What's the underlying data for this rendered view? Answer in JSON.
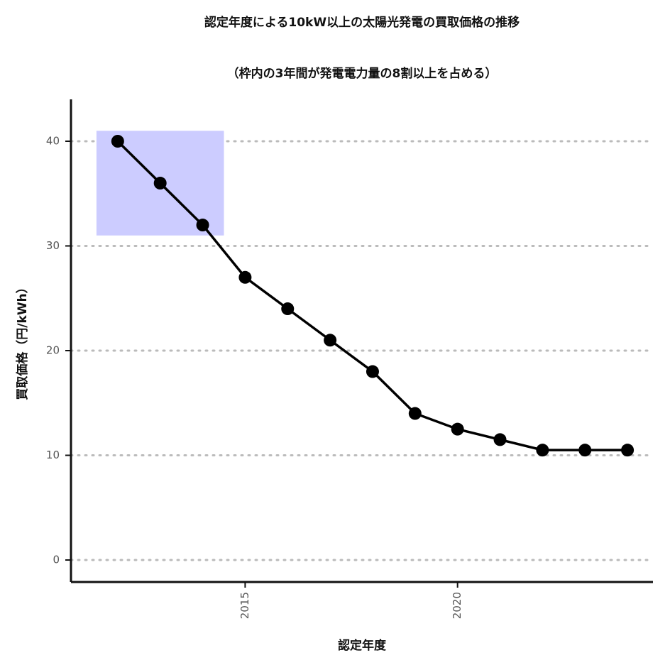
{
  "chart_data": {
    "type": "line",
    "title": "認定年度による10kW以上の太陽光発電の買取価格の推移",
    "subtitle": "（枠内の3年間が発電電力量の8割以上を占める）",
    "x_label": "認定年度",
    "y_label": "買取価格（円/kWh）",
    "x": [
      2012,
      2013,
      2014,
      2015,
      2016,
      2017,
      2018,
      2019,
      2020,
      2021,
      2022,
      2023,
      2024
    ],
    "values": [
      40,
      36,
      32,
      27,
      24,
      21,
      18,
      14,
      12.5,
      11.5,
      10.5,
      10.5,
      10.5
    ],
    "color": "#000000",
    "xlim": [
      2010.9,
      2024.6
    ],
    "xticks": [
      2015,
      2020
    ],
    "ylim": [
      -2.1,
      44
    ],
    "yticks": [
      0,
      10,
      20,
      30,
      40
    ],
    "grid": true,
    "highlight": {
      "xlim": [
        2011.5,
        2014.5
      ],
      "ylim": [
        31,
        41
      ],
      "color": "#ccccff"
    }
  }
}
